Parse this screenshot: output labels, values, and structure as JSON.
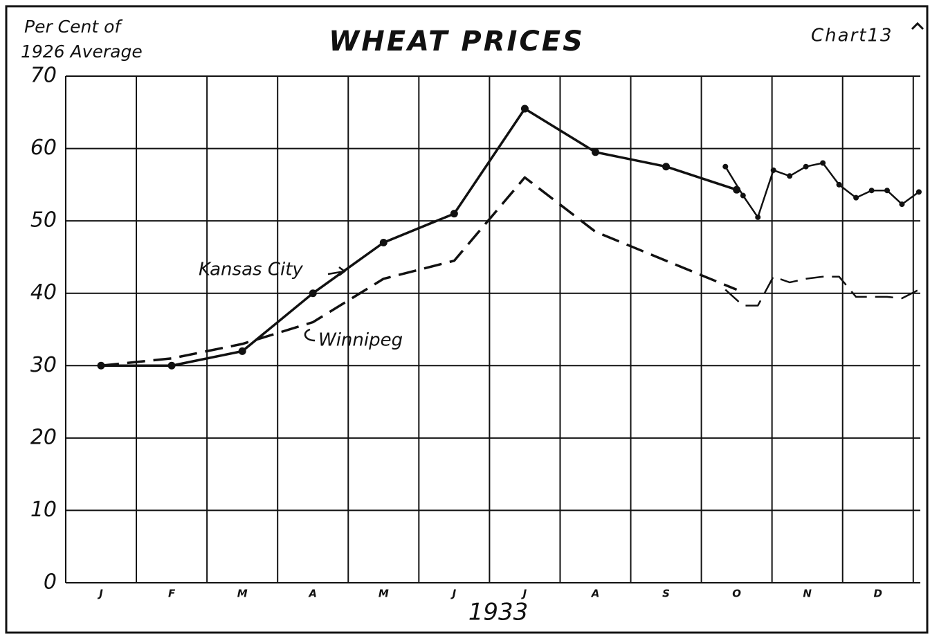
{
  "chart_data": {
    "type": "line",
    "title": "WHEAT PRICES",
    "chart_number": "Chart13",
    "y_axis_label": [
      "Per Cent of",
      "1926 Average"
    ],
    "x_axis_label": "1933",
    "categories": [
      "J",
      "F",
      "M",
      "A",
      "M",
      "J",
      "J",
      "A",
      "S",
      "O",
      "N",
      "D"
    ],
    "xlim": [
      -0.5,
      11.6
    ],
    "ylim": [
      0,
      70
    ],
    "yticks": [
      0,
      10,
      20,
      30,
      40,
      50,
      60,
      70
    ],
    "grid": true,
    "annotations": [
      "Kansas City",
      "Winnipeg"
    ],
    "series": [
      {
        "name": "Kansas City",
        "color": "#111111",
        "dashed": false,
        "markers": true,
        "x": [
          0,
          1,
          2,
          3,
          4,
          5,
          6,
          7,
          8,
          9,
          null,
          8.84,
          9.09,
          9.3,
          9.52,
          9.75,
          9.98,
          10.22,
          10.45,
          10.69,
          10.91,
          11.13,
          11.34,
          11.58
        ],
        "values": [
          30,
          30,
          32,
          40,
          47,
          51,
          65.5,
          59.5,
          57.5,
          54.3,
          null,
          57.5,
          53.5,
          50.5,
          57,
          56.2,
          57.5,
          58,
          55,
          53.2,
          54.2,
          54.2,
          52.3,
          54
        ]
      },
      {
        "name": "Winnipeg",
        "color": "#111111",
        "dashed": true,
        "markers": false,
        "x": [
          0,
          1,
          2,
          3,
          4,
          5,
          6,
          7,
          8,
          9,
          null,
          8.84,
          9.09,
          9.3,
          9.52,
          9.75,
          9.98,
          10.22,
          10.45,
          10.69,
          10.91,
          11.13,
          11.34,
          11.58
        ],
        "values": [
          30,
          31,
          33,
          36,
          42,
          44.5,
          56,
          48.5,
          44.5,
          40.5,
          null,
          40.5,
          38.3,
          38.3,
          42.3,
          41.5,
          42,
          42.3,
          42.3,
          39.5,
          39.5,
          39.5,
          39.3,
          40.5
        ]
      }
    ]
  }
}
